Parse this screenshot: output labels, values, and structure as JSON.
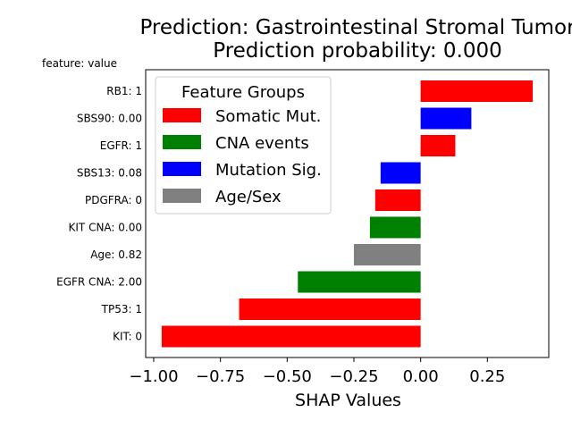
{
  "chart_data": {
    "type": "bar",
    "orientation": "horizontal",
    "title": "Prediction: Gastrointestinal Stromal Tumor",
    "subtitle": "Prediction probability: 0.000",
    "xlabel": "SHAP Values",
    "ylabel_header": "feature: value",
    "xlim": [
      -1.03,
      0.48
    ],
    "xticks": [
      -1.0,
      -0.75,
      -0.5,
      -0.25,
      0.0,
      0.25
    ],
    "xtick_labels": [
      "−1.00",
      "−0.75",
      "−0.50",
      "−0.25",
      "0.00",
      "0.25"
    ],
    "grid": false,
    "legend": {
      "title": "Feature Groups",
      "placement": "upper-left",
      "entries": [
        {
          "name": "Somatic Mut.",
          "color": "#ff0000"
        },
        {
          "name": "CNA events",
          "color": "#008000"
        },
        {
          "name": "Mutation Sig.",
          "color": "#0000ff"
        },
        {
          "name": "Age/Sex",
          "color": "#808080"
        }
      ]
    },
    "bars": [
      {
        "label": "RB1: 1",
        "value": 0.42,
        "color": "#ff0000"
      },
      {
        "label": "SBS90: 0.00",
        "value": 0.19,
        "color": "#0000ff"
      },
      {
        "label": "EGFR: 1",
        "value": 0.13,
        "color": "#ff0000"
      },
      {
        "label": "SBS13: 0.08",
        "value": -0.15,
        "color": "#0000ff"
      },
      {
        "label": "PDGFRA: 0",
        "value": -0.17,
        "color": "#ff0000"
      },
      {
        "label": "KIT CNA: 0.00",
        "value": -0.19,
        "color": "#008000"
      },
      {
        "label": "Age: 0.82",
        "value": -0.25,
        "color": "#808080"
      },
      {
        "label": "EGFR CNA: 2.00",
        "value": -0.46,
        "color": "#008000"
      },
      {
        "label": "TP53: 1",
        "value": -0.68,
        "color": "#ff0000"
      },
      {
        "label": "KIT: 0",
        "value": -0.97,
        "color": "#ff0000"
      }
    ]
  }
}
